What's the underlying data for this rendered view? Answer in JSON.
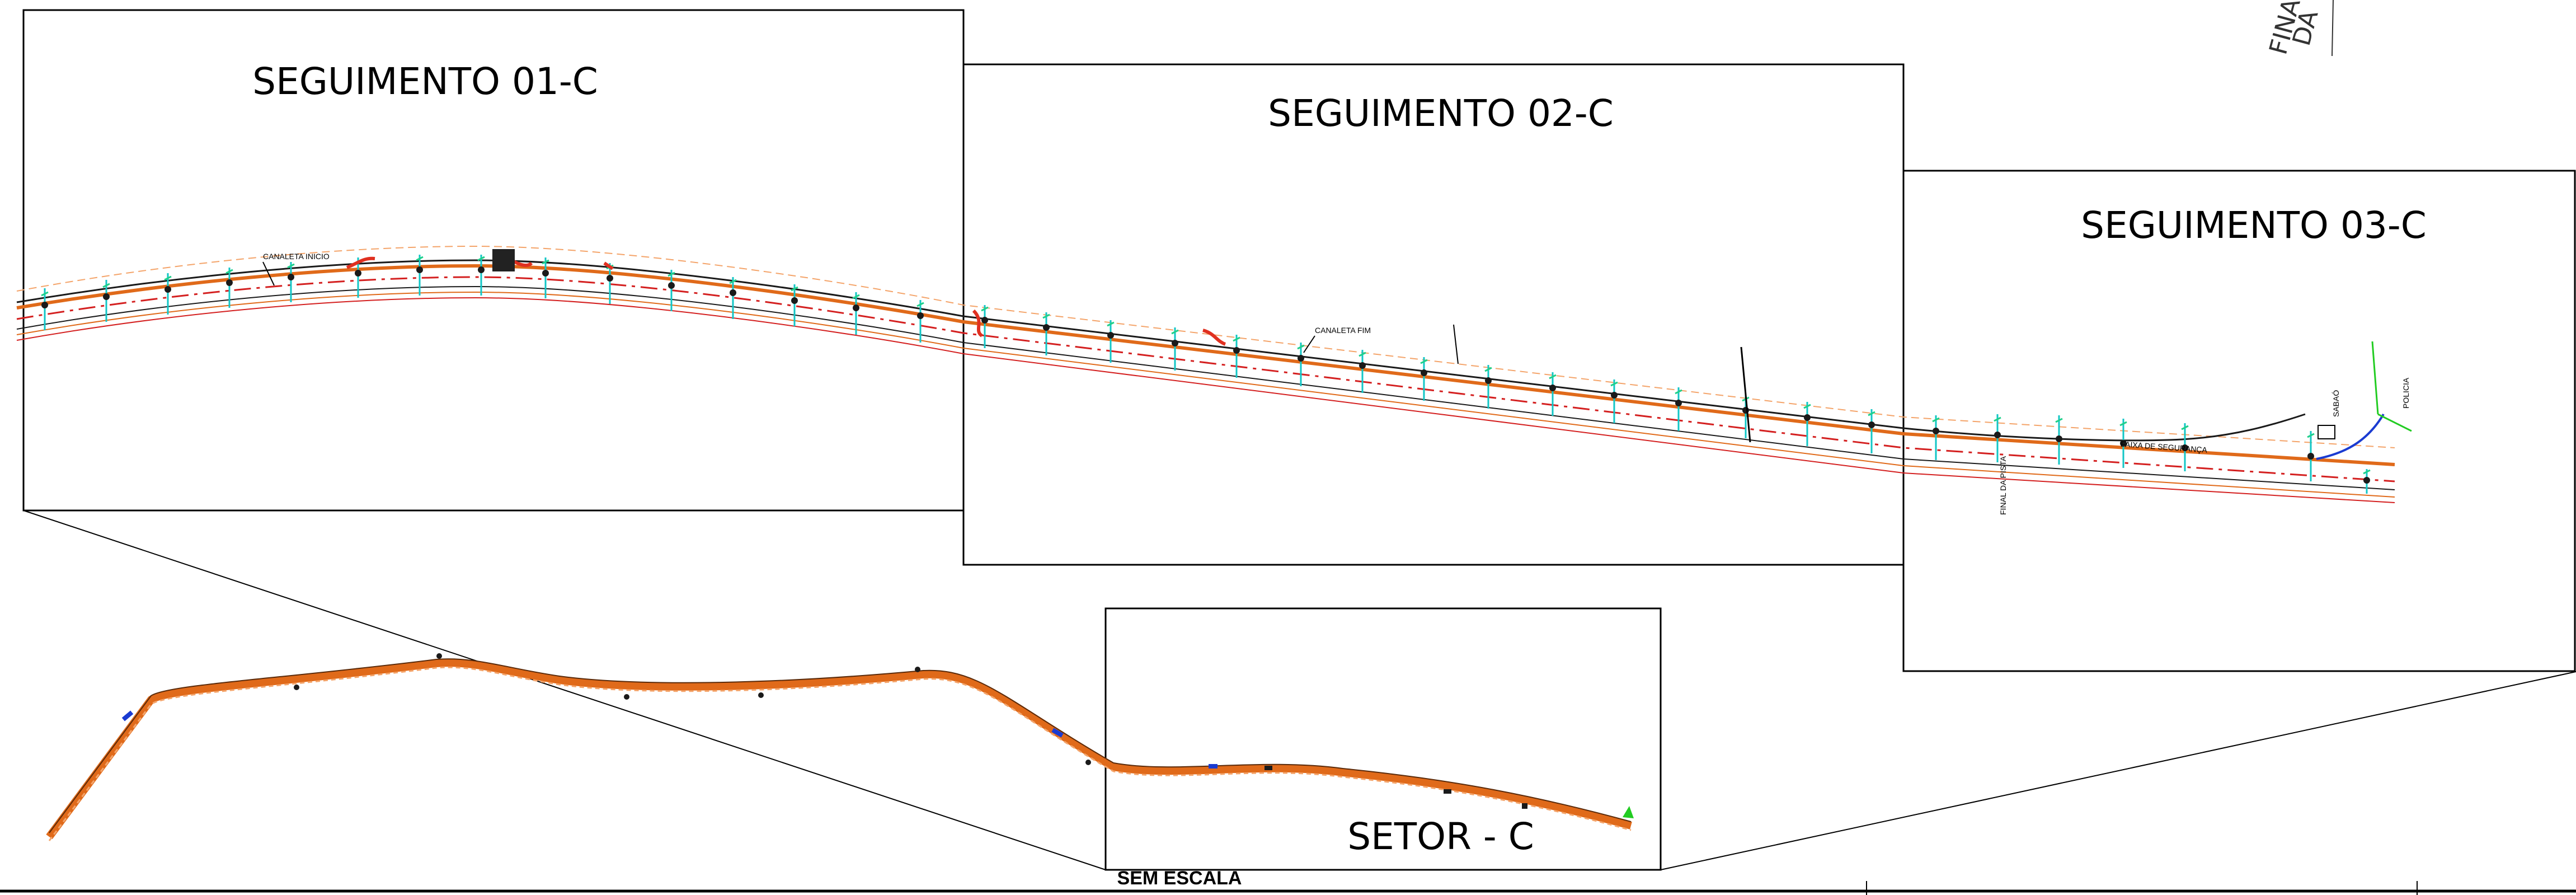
{
  "segments": [
    {
      "id": "01",
      "title": "SEGUIMENTO 01-C"
    },
    {
      "id": "02",
      "title": "SEGUIMENTO 02-C"
    },
    {
      "id": "03",
      "title": "SEGUIMENTO 03-C"
    }
  ],
  "sector": {
    "title": "SETOR - C",
    "scale_note": "SEM ESCALA"
  },
  "corner_fragment": {
    "line1": "FINA",
    "line2": "DA"
  },
  "callouts": {
    "canaleta_inicio": "CANALETA INICIO",
    "canaleta_fim": "CANALETA FIM",
    "final_da_pista": "FINAL DA PISTA",
    "faixa_seguranca": "FAIXA DE SEGURANÇA",
    "policia": "POLICIA",
    "sabaao": "SABAÓ"
  },
  "colors": {
    "frame": "#000000",
    "road_edge": "#e06a1a",
    "road_center": "#d42020",
    "road_dark": "#1a1a1a",
    "marker_green": "#1fd08a",
    "marker_cyan": "#12c6c6",
    "marker_blue": "#1a3bd1",
    "branch_green": "#22cc22",
    "orange_light": "#f4a46a"
  }
}
